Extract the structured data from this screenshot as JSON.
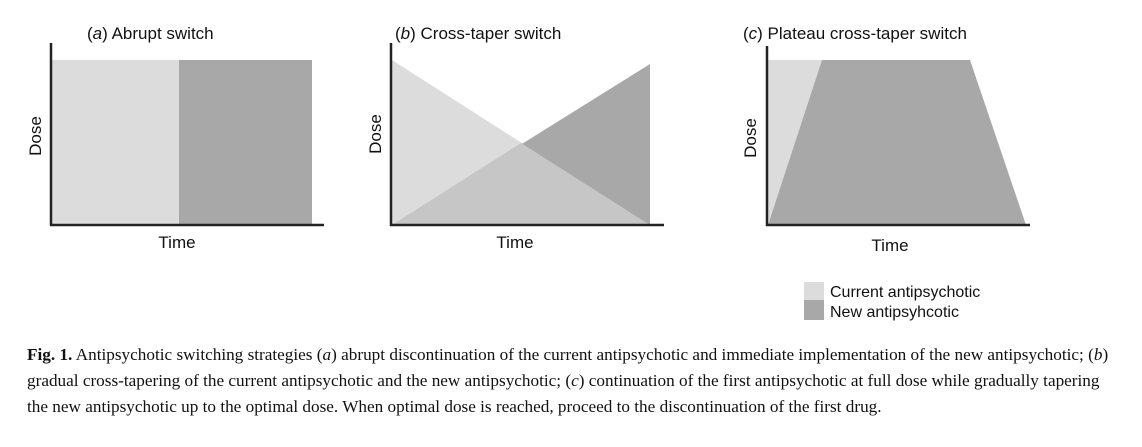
{
  "colors": {
    "current": "#dcdcdc",
    "new": "#a8a8a8",
    "axis": "#222222"
  },
  "panels": [
    {
      "id": "a",
      "letter": "a",
      "title": ") Abrupt switch",
      "ylabel": "Dose",
      "xlabel": "Time"
    },
    {
      "id": "b",
      "letter": "b",
      "title": ") Cross-taper switch",
      "ylabel": "Dose",
      "xlabel": "Time"
    },
    {
      "id": "c",
      "letter": "c",
      "title": ") Plateau cross-taper switch",
      "ylabel": "Dose",
      "xlabel": "Time"
    }
  ],
  "legend": {
    "items": [
      {
        "label": "Current antipsychotic",
        "color": "#dcdcdc"
      },
      {
        "label": "New antipsyhcotic",
        "color": "#a8a8a8"
      }
    ]
  },
  "caption": {
    "fig_label": "Fig. 1.",
    "text": "Antipsychotic switching strategies (a) abrupt discontinuation of the current antipsychotic and immediate implementation of the new antipsychotic; (b) gradual cross-tapering of the current antipsychotic and the new antipsychotic; (c) continuation of the first antipsychotic at full dose while gradually tapering the new antipsychotic up to the optimal dose. When optimal dose is reached, proceed to the discontinuation of the first drug."
  }
}
